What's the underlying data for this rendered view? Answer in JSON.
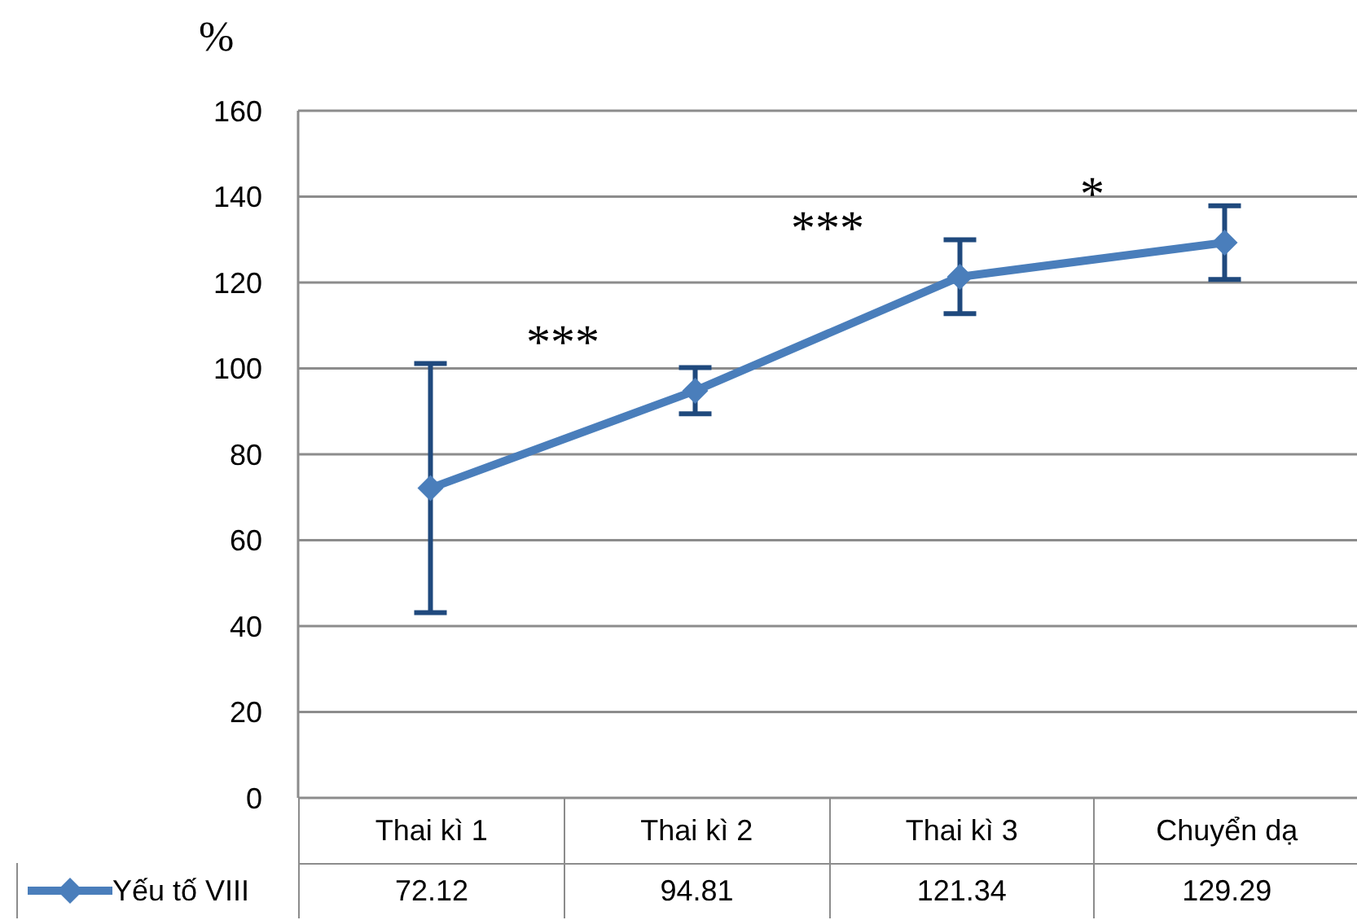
{
  "chart_data": {
    "type": "line",
    "ylabel": "%",
    "categories": [
      "Thai kì 1",
      "Thai kì 2",
      "Thai kì 3",
      "Chuyển dạ"
    ],
    "series": [
      {
        "name": "Yếu tố VIII",
        "color": "#4a7ebb",
        "values": [
          72.12,
          94.81,
          121.34,
          129.29
        ],
        "errors": [
          29,
          5.4,
          8.6,
          8.6
        ]
      }
    ],
    "ylim": [
      0,
      160
    ],
    "yticks": [
      0,
      20,
      40,
      60,
      80,
      100,
      120,
      140,
      160
    ],
    "grid": "y",
    "marker": "diamond",
    "line_style": "solid",
    "data_labels": true,
    "legend": "bottom",
    "annotations": [
      "***",
      "***",
      "*"
    ]
  }
}
